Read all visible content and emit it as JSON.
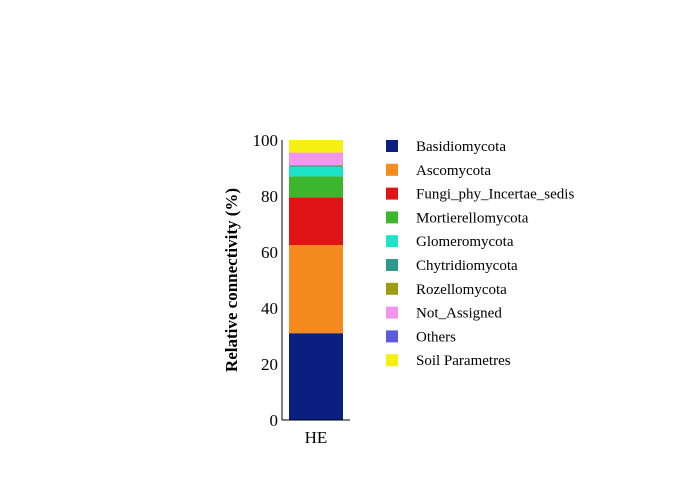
{
  "chart_data": {
    "type": "bar",
    "stacked": true,
    "categories": [
      "HE"
    ],
    "ylabel": "Relative connectivity (%)",
    "xlabel": "",
    "ylim": [
      0,
      100
    ],
    "yticks": [
      0,
      20,
      40,
      60,
      80,
      100
    ],
    "grid": false,
    "legend_position": "right",
    "series": [
      {
        "name": "Basidiomycota",
        "color": "#0a1f7f",
        "values": [
          31
        ]
      },
      {
        "name": "Ascomycota",
        "color": "#f58a1f",
        "values": [
          31.5
        ]
      },
      {
        "name": "Fungi_phy_Incertae_sedis",
        "color": "#e01414",
        "values": [
          17
        ]
      },
      {
        "name": "Mortierellomycota",
        "color": "#3cb72d",
        "values": [
          7.5
        ]
      },
      {
        "name": "Glomeromycota",
        "color": "#1de3c9",
        "values": [
          3.5
        ]
      },
      {
        "name": "Chytridiomycota",
        "color": "#2e9a8b",
        "values": [
          0.3
        ]
      },
      {
        "name": "Rozellomycota",
        "color": "#9c9d14",
        "values": [
          0.3
        ]
      },
      {
        "name": "Not_Assigned",
        "color": "#f295ee",
        "values": [
          4.4
        ]
      },
      {
        "name": "Others",
        "color": "#5b5bdc",
        "values": [
          0
        ]
      },
      {
        "name": "Soil Parametres",
        "color": "#f5ef14",
        "values": [
          4.5
        ]
      }
    ]
  }
}
